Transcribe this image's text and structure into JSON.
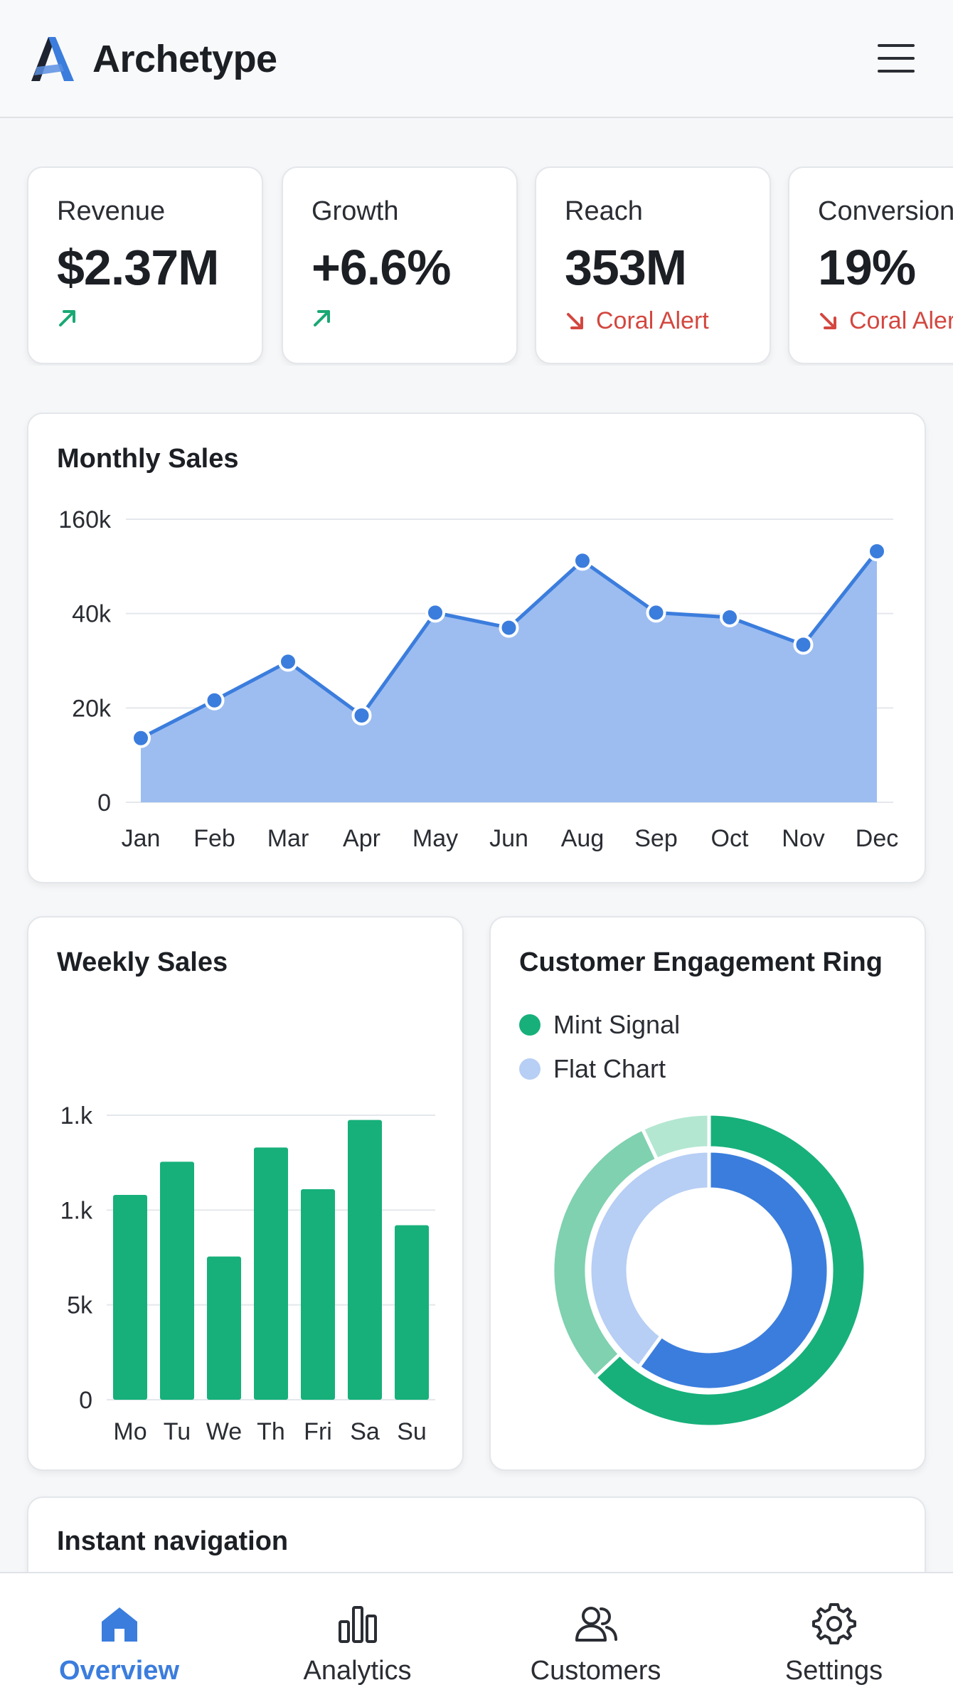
{
  "header": {
    "title": "Archetype",
    "logo_icon": "archetype-a-logo",
    "menu_icon": "hamburger-menu-icon"
  },
  "kpis": [
    {
      "label": "Revenue",
      "value": "$2.37M",
      "trend": "up",
      "trend_text": ""
    },
    {
      "label": "Growth",
      "value": "+6.6%",
      "trend": "up",
      "trend_text": ""
    },
    {
      "label": "Reach",
      "value": "353M",
      "trend": "down",
      "trend_text": "Coral Alert"
    },
    {
      "label": "Conversion",
      "value": "19%",
      "trend": "down",
      "trend_text": "Coral Alert"
    }
  ],
  "monthly_sales": {
    "title": "Monthly Sales"
  },
  "weekly_sales": {
    "title": "Weekly Sales"
  },
  "engagement": {
    "title": "Customer Engagement Ring",
    "legend": [
      {
        "name": "Mint Signal",
        "color": "#17b07b"
      },
      {
        "name": "Flat Chart",
        "color": "#b7cef5"
      }
    ]
  },
  "instant_navigation": {
    "title": "Instant navigation"
  },
  "bottom_nav": [
    {
      "label": "Overview",
      "icon": "home-icon",
      "active": true
    },
    {
      "label": "Analytics",
      "icon": "bar-chart-icon",
      "active": false
    },
    {
      "label": "Customers",
      "icon": "users-icon",
      "active": false
    },
    {
      "label": "Settings",
      "icon": "gear-icon",
      "active": false
    }
  ],
  "colors": {
    "accent_blue": "#3b7ddd",
    "area_fill": "#9dbdf0",
    "mint": "#17b07b",
    "coral": "#d3473f"
  },
  "chart_data": [
    {
      "type": "area",
      "title": "Monthly Sales",
      "categories": [
        "Jan",
        "Feb",
        "Mar",
        "Apr",
        "May",
        "Jun",
        "Aug",
        "Sep",
        "Oct",
        "Nov",
        "Dec"
      ],
      "y_tick_labels": [
        "0",
        "20k",
        "40k",
        "160k"
      ],
      "y_tick_positions": [
        0,
        1,
        2,
        3
      ],
      "values_on_tick_scale": [
        0.68,
        1.08,
        1.49,
        0.92,
        2.01,
        1.85,
        2.56,
        2.01,
        1.96,
        1.67,
        2.66
      ],
      "grid": true
    },
    {
      "type": "bar",
      "title": "Weekly Sales",
      "categories": [
        "Mo",
        "Tu",
        "We",
        "Th",
        "Fri",
        "Sa",
        "Su"
      ],
      "y_tick_labels": [
        "0",
        "5k",
        "1.k",
        "1.k"
      ],
      "y_tick_positions": [
        0,
        1,
        2,
        3
      ],
      "values_on_tick_scale": [
        2.16,
        2.51,
        1.51,
        2.66,
        2.22,
        2.95,
        1.84
      ],
      "color": "#17b07b",
      "grid": true
    },
    {
      "type": "pie",
      "title": "Customer Engagement Ring",
      "series": [
        {
          "name": "Mint Signal",
          "slices": [
            {
              "value": 63,
              "color": "#17b07b"
            },
            {
              "value": 30,
              "color": "#7fd1b0"
            },
            {
              "value": 7,
              "color": "#b3e7d2"
            }
          ]
        },
        {
          "name": "Flat Chart",
          "slices": [
            {
              "value": 60,
              "color": "#3b7ddd"
            },
            {
              "value": 40,
              "color": "#b7cef5"
            }
          ]
        }
      ]
    }
  ]
}
